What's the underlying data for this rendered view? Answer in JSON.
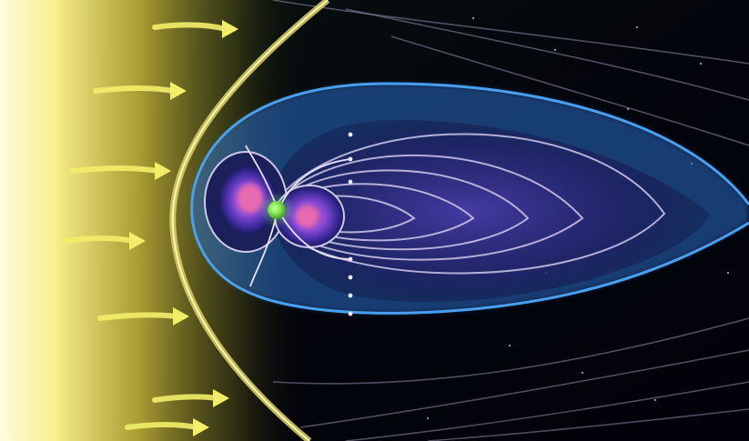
{
  "scene": {
    "subject": "magnetosphere-illustration",
    "colors": {
      "space": "#02030a",
      "solar_wind": "#f2ee6a",
      "bow_shock": "#d9cf6a",
      "magnetopause": "#3a8fe0",
      "field_line": "#b8b0d8",
      "plasma_core": "#d04fa8",
      "inner_belt": "#6a3fd8",
      "planet": "#7de04a",
      "star_dot": "#8a8aa0"
    },
    "solar_wind_arrow_count": 7,
    "field_line_count": 7
  }
}
